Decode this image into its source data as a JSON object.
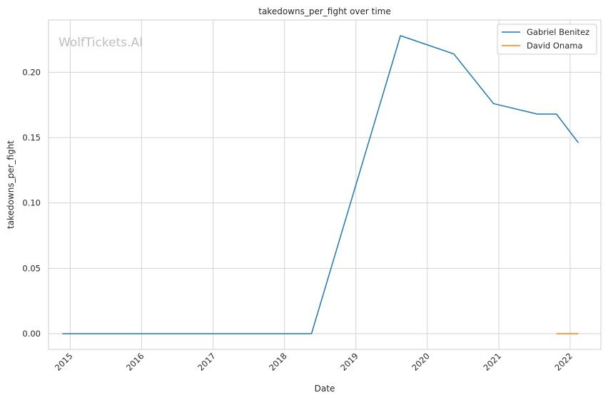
{
  "chart_data": {
    "type": "line",
    "title": "takedowns_per_fight over time",
    "xlabel": "Date",
    "ylabel": "takedowns_per_fight",
    "watermark": "WolfTickets.AI",
    "x_ticks": [
      "2015",
      "2016",
      "2017",
      "2018",
      "2019",
      "2020",
      "2021",
      "2022"
    ],
    "y_ticks": [
      "0.00",
      "0.05",
      "0.10",
      "0.15",
      "0.20"
    ],
    "xlim": [
      "2014-09-12",
      "2022-06-07"
    ],
    "ylim": [
      -0.012,
      0.24
    ],
    "grid": true,
    "legend_position": "top-right",
    "series": [
      {
        "name": "Gabriel Benitez",
        "color": "#1f77b4",
        "points": [
          {
            "x": "2014-11-22",
            "y": 0.0
          },
          {
            "x": "2018-05-19",
            "y": 0.0
          },
          {
            "x": "2019-08-17",
            "y": 0.228
          },
          {
            "x": "2020-05-16",
            "y": 0.214
          },
          {
            "x": "2020-12-05",
            "y": 0.176
          },
          {
            "x": "2021-07-17",
            "y": 0.168
          },
          {
            "x": "2021-10-23",
            "y": 0.168
          },
          {
            "x": "2022-02-12",
            "y": 0.146
          }
        ]
      },
      {
        "name": "David Onama",
        "color": "#ff7f0e",
        "points": [
          {
            "x": "2021-10-23",
            "y": 0.0
          },
          {
            "x": "2022-02-12",
            "y": 0.0
          }
        ]
      }
    ]
  }
}
